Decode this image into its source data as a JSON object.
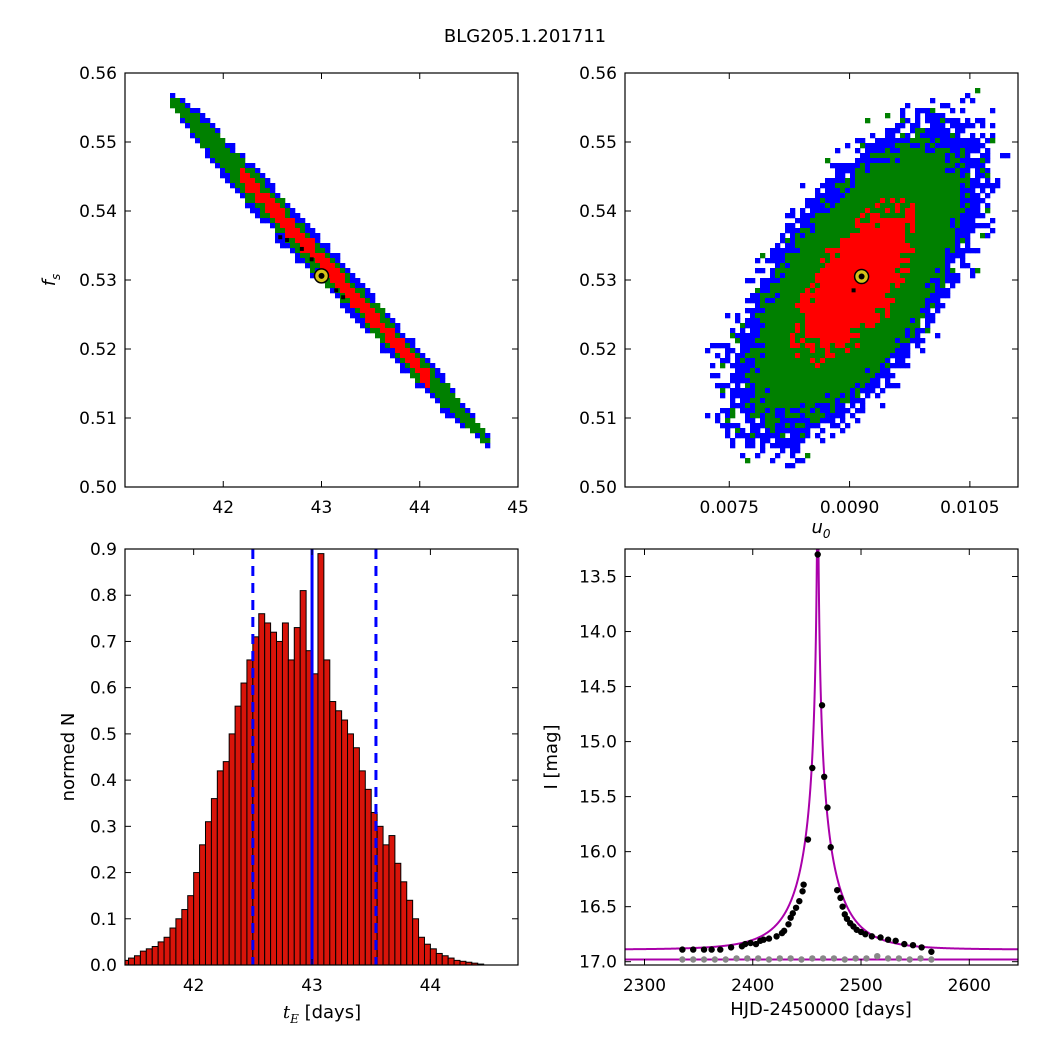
{
  "title": "BLG205.1.201711",
  "colors": {
    "sigma1": "#ff0000",
    "sigma2": "#008000",
    "sigma3": "#0000ff",
    "model": "#aa00aa",
    "best_fit": "#d4c21a"
  },
  "chart_data": [
    {
      "type": "heatmap",
      "name": "tE vs fs",
      "xlim": [
        41.0,
        45.0
      ],
      "ylim": [
        0.5,
        0.56
      ],
      "xticks": [
        "42",
        "43",
        "44",
        "45"
      ],
      "yticks": [
        "0.50",
        "0.51",
        "0.52",
        "0.53",
        "0.54",
        "0.55",
        "0.56"
      ],
      "xlabel": "",
      "ylabel": "f",
      "ylabel_sub": "s",
      "best_fit": {
        "x": 43.0,
        "y": 0.5306
      },
      "ridge": {
        "x0": 41.45,
        "y0": 0.5565,
        "x1": 44.7,
        "y1": 0.5065
      },
      "widths_3sigma": [
        0.0025,
        0.003,
        0.0034,
        0.0032,
        0.003,
        0.0026,
        0.002
      ]
    },
    {
      "type": "heatmap",
      "name": "u0 vs fs",
      "xlim": [
        0.0062,
        0.0111
      ],
      "ylim": [
        0.5,
        0.56
      ],
      "xticks": [
        "0.0075",
        "0.0090",
        "0.0105"
      ],
      "yticks": [
        "0.50",
        "0.51",
        "0.52",
        "0.53",
        "0.54",
        "0.55",
        "0.56"
      ],
      "xlabel": "u",
      "xlabel_sub": "0",
      "ylabel": "",
      "best_fit": {
        "x": 0.00915,
        "y": 0.5305
      }
    },
    {
      "type": "bar",
      "name": "tE histogram",
      "x_start": 41.4,
      "bin_width": 0.05,
      "values": [
        0.01,
        0.015,
        0.02,
        0.03,
        0.035,
        0.04,
        0.05,
        0.06,
        0.08,
        0.1,
        0.12,
        0.15,
        0.2,
        0.26,
        0.31,
        0.36,
        0.42,
        0.44,
        0.5,
        0.56,
        0.61,
        0.66,
        0.71,
        0.76,
        0.74,
        0.72,
        0.7,
        0.74,
        0.66,
        0.73,
        0.81,
        0.68,
        0.63,
        0.89,
        0.66,
        0.57,
        0.55,
        0.53,
        0.5,
        0.47,
        0.42,
        0.38,
        0.33,
        0.3,
        0.26,
        0.28,
        0.22,
        0.18,
        0.14,
        0.1,
        0.06,
        0.045,
        0.035,
        0.025,
        0.02,
        0.015,
        0.01,
        0.008,
        0.006,
        0.004,
        0.002
      ],
      "xlim": [
        41.42,
        44.74
      ],
      "ylim": [
        0.0,
        0.9
      ],
      "xticks": [
        "42",
        "43",
        "44"
      ],
      "yticks": [
        "0.0",
        "0.1",
        "0.2",
        "0.3",
        "0.4",
        "0.5",
        "0.6",
        "0.7",
        "0.8",
        "0.9"
      ],
      "xlabel_var": "t",
      "xlabel_sub": "E",
      "xlabel": " [days]",
      "ylabel": "normed N",
      "best_fit_line": 43.0,
      "sigma_lines": [
        42.5,
        43.54
      ]
    },
    {
      "type": "line",
      "name": "light curve",
      "xlim": [
        2282,
        2645
      ],
      "ylim": [
        17.03,
        13.25
      ],
      "xticks": [
        "2300",
        "2400",
        "2500",
        "2600"
      ],
      "yticks": [
        "13.5",
        "14.0",
        "14.5",
        "15.0",
        "15.5",
        "16.0",
        "16.5",
        "17.0"
      ],
      "xlabel": "HJD-2450000 [days]",
      "ylabel": "I [mag]",
      "model": {
        "t0": 2460.0,
        "tE": 43.0,
        "u0": 0.00915,
        "fs": 0.5305,
        "ibase": 16.89,
        "residual_base": 16.98
      },
      "data_points": [
        [
          2335,
          16.89
        ],
        [
          2345,
          16.89
        ],
        [
          2355,
          16.89
        ],
        [
          2362,
          16.89
        ],
        [
          2370,
          16.89
        ],
        [
          2380,
          16.87
        ],
        [
          2390,
          16.86
        ],
        [
          2393,
          16.84
        ],
        [
          2398,
          16.83
        ],
        [
          2403,
          16.84
        ],
        [
          2407,
          16.81
        ],
        [
          2410,
          16.8
        ],
        [
          2415,
          16.79
        ],
        [
          2422,
          16.77
        ],
        [
          2427,
          16.74
        ],
        [
          2429,
          16.72
        ],
        [
          2433,
          16.66
        ],
        [
          2435,
          16.6
        ],
        [
          2437,
          16.56
        ],
        [
          2440,
          16.51
        ],
        [
          2443,
          16.45
        ],
        [
          2446,
          16.36
        ],
        [
          2447,
          16.3
        ],
        [
          2451,
          15.89
        ],
        [
          2455,
          15.24
        ],
        [
          2460,
          13.3
        ],
        [
          2464,
          14.67
        ],
        [
          2466,
          15.32
        ],
        [
          2469,
          15.6
        ],
        [
          2472,
          15.96
        ],
        [
          2478,
          16.35
        ],
        [
          2481,
          16.42
        ],
        [
          2483,
          16.5
        ],
        [
          2485,
          16.57
        ],
        [
          2487,
          16.61
        ],
        [
          2490,
          16.65
        ],
        [
          2493,
          16.68
        ],
        [
          2496,
          16.71
        ],
        [
          2500,
          16.73
        ],
        [
          2504,
          16.75
        ],
        [
          2510,
          16.77
        ],
        [
          2518,
          16.78
        ],
        [
          2525,
          16.8
        ],
        [
          2532,
          16.81
        ],
        [
          2540,
          16.84
        ],
        [
          2548,
          16.85
        ],
        [
          2556,
          16.87
        ],
        [
          2565,
          16.91
        ]
      ],
      "residual_points": [
        [
          2335,
          16.98
        ],
        [
          2345,
          16.98
        ],
        [
          2355,
          16.98
        ],
        [
          2365,
          16.98
        ],
        [
          2375,
          16.98
        ],
        [
          2385,
          16.97
        ],
        [
          2395,
          16.97
        ],
        [
          2405,
          16.97
        ],
        [
          2415,
          16.98
        ],
        [
          2425,
          16.97
        ],
        [
          2435,
          16.97
        ],
        [
          2445,
          16.98
        ],
        [
          2455,
          16.97
        ],
        [
          2465,
          16.97
        ],
        [
          2475,
          16.97
        ],
        [
          2485,
          16.98
        ],
        [
          2495,
          16.97
        ],
        [
          2505,
          16.97
        ],
        [
          2515,
          16.95
        ],
        [
          2525,
          16.97
        ],
        [
          2535,
          16.97
        ],
        [
          2545,
          16.98
        ],
        [
          2555,
          16.97
        ],
        [
          2565,
          16.98
        ]
      ]
    }
  ]
}
